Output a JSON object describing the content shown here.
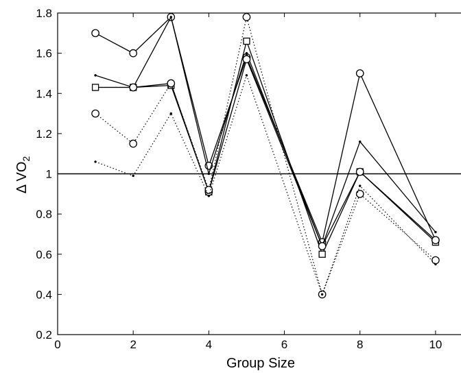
{
  "chart_data": {
    "type": "line",
    "title": "",
    "xlabel": "Group Size",
    "ylabel_main": "Δ VO",
    "ylabel_sub": "2",
    "xlim": [
      0,
      11
    ],
    "ylim": [
      0.2,
      1.8
    ],
    "xticks": [
      0,
      2,
      4,
      6,
      8,
      10
    ],
    "xtick_labels": [
      "0",
      "2",
      "4",
      "6",
      "8",
      "10"
    ],
    "yticks": [
      0.2,
      0.4,
      0.6,
      0.8,
      1,
      1.2,
      1.4,
      1.6,
      1.8
    ],
    "ytick_labels": [
      "0.2",
      "0.4",
      "0.6",
      "0.8",
      "1",
      "1.2",
      "1.4",
      "1.6",
      "1.8"
    ],
    "grid": false,
    "reference_line": 1,
    "x": [
      1,
      2,
      3,
      4,
      5,
      7,
      8,
      10
    ],
    "series": [
      {
        "style": "solid",
        "marker": "circle",
        "values": [
          1.7,
          1.6,
          1.78,
          1.04,
          1.58,
          0.66,
          1.5,
          0.67
        ]
      },
      {
        "style": "solid",
        "marker": "dot",
        "values": [
          1.49,
          1.43,
          1.78,
          1.0,
          1.6,
          0.64,
          1.16,
          0.71
        ]
      },
      {
        "style": "solid",
        "marker": "square",
        "values": [
          1.43,
          1.43,
          1.44,
          0.91,
          1.66,
          0.6,
          1.01,
          0.66
        ]
      },
      {
        "style": "solid",
        "marker": "circle",
        "values": [
          null,
          1.43,
          1.45,
          0.91,
          1.57,
          0.64,
          1.01,
          0.67
        ]
      },
      {
        "style": "dotted",
        "marker": "circle",
        "values": [
          1.3,
          1.15,
          1.45,
          0.92,
          1.78,
          0.4,
          0.9,
          0.57
        ]
      },
      {
        "style": "dotted",
        "marker": "dot",
        "values": [
          1.06,
          0.99,
          1.3,
          0.89,
          1.49,
          0.4,
          0.94,
          0.55
        ]
      }
    ]
  }
}
